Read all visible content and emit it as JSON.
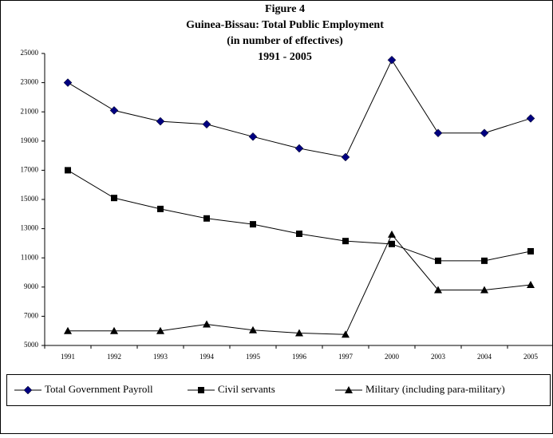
{
  "chart_data": {
    "type": "line",
    "title": [
      "Figure 4",
      "Guinea-Bissau: Total Public Employment",
      "(in number of effectives)",
      "1991 - 2005"
    ],
    "categories": [
      "1991",
      "1992",
      "1993",
      "1994",
      "1995",
      "1996",
      "1997",
      "2000",
      "2003",
      "2004",
      "2005"
    ],
    "series": [
      {
        "name": "Total Government Payroll",
        "color": "#000080",
        "marker": "diamond",
        "values": [
          23000,
          21100,
          20350,
          20150,
          19300,
          18500,
          17900,
          24550,
          19550,
          19550,
          20550
        ]
      },
      {
        "name": "Civil servants",
        "color": "#000000",
        "marker": "square",
        "values": [
          17000,
          15100,
          14350,
          13700,
          13300,
          12650,
          12150,
          11950,
          10800,
          10800,
          11450
        ]
      },
      {
        "name": "Military  (including para-military)",
        "color": "#000000",
        "marker": "triangle",
        "values": [
          6000,
          6000,
          6000,
          6450,
          6050,
          5850,
          5750,
          12600,
          8800,
          8800,
          9150
        ]
      }
    ],
    "ylim": [
      5000,
      25000
    ],
    "yticks": [
      5000,
      7000,
      9000,
      11000,
      13000,
      15000,
      17000,
      19000,
      21000,
      23000,
      25000
    ],
    "legend": "bottom"
  }
}
